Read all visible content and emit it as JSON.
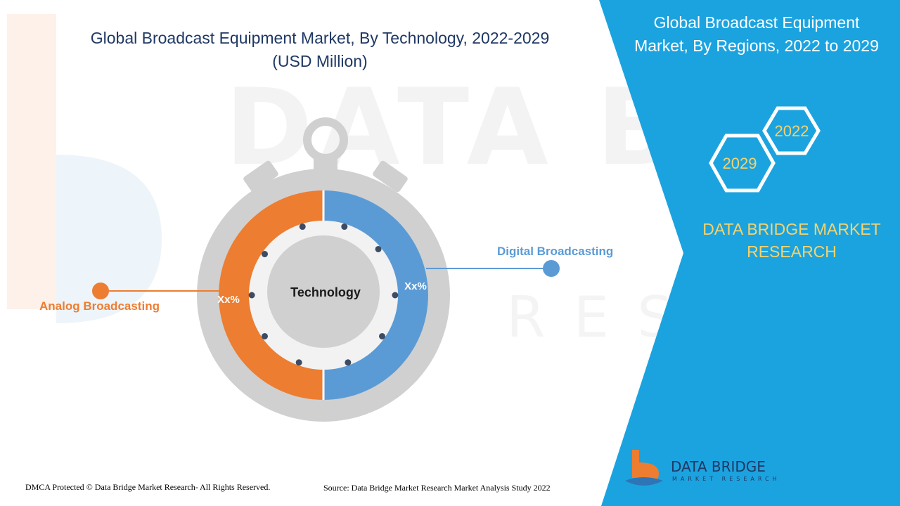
{
  "title_line1": "Global Broadcast Equipment Market, By Technology, 2022-2029",
  "title_line2": "(USD Million)",
  "panel": {
    "title_line1": "Global Broadcast Equipment",
    "title_line2": "Market, By Regions, 2022 to 2029",
    "year_a": "2022",
    "year_b": "2029",
    "brand_line1": "DATA BRIDGE MARKET",
    "brand_line2": "RESEARCH"
  },
  "watermark": {
    "main": "DATA BRIDGE",
    "sub": "RESEARCH"
  },
  "footer": {
    "left": "DMCA Protected © Data Bridge Market Research- All Rights Reserved.",
    "right": "Source: Data Bridge Market Research Market Analysis Study 2022"
  },
  "logo": {
    "name": "DATA BRIDGE",
    "tagline": "MARKET RESEARCH"
  },
  "colors": {
    "analog": "#ed7d31",
    "digital": "#5b9bd5",
    "panel": "#1ba3e0",
    "accent": "#f5d36c",
    "title": "#1f3864"
  },
  "chart_data": {
    "type": "pie",
    "variant": "donut",
    "center_label": "Technology",
    "categories": [
      "Analog Broadcasting",
      "Digital Broadcasting"
    ],
    "values": [
      50,
      50
    ],
    "data_labels": [
      "Xx%",
      "Xx%"
    ],
    "legend": "callouts"
  }
}
